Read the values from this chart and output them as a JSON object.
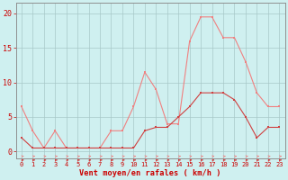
{
  "x": [
    0,
    1,
    2,
    3,
    4,
    5,
    6,
    7,
    8,
    9,
    10,
    11,
    12,
    13,
    14,
    15,
    16,
    17,
    18,
    19,
    20,
    21,
    22,
    23
  ],
  "y_rafales": [
    6.5,
    3.0,
    0.5,
    3.0,
    0.5,
    0.5,
    0.5,
    0.5,
    3.0,
    3.0,
    6.5,
    11.5,
    9.0,
    4.0,
    4.0,
    16.0,
    19.5,
    19.5,
    16.5,
    16.5,
    13.0,
    8.5,
    6.5,
    6.5
  ],
  "y_moyen": [
    2.0,
    0.5,
    0.5,
    0.5,
    0.5,
    0.5,
    0.5,
    0.5,
    0.5,
    0.5,
    0.5,
    3.0,
    3.5,
    3.5,
    5.0,
    6.5,
    8.5,
    8.5,
    8.5,
    7.5,
    5.0,
    2.0,
    3.5,
    3.5
  ],
  "color_rafales": "#f08080",
  "color_moyen": "#d04040",
  "bg_color": "#cff0f0",
  "grid_color": "#a8c8c8",
  "xlabel": "Vent moyen/en rafales ( km/h )",
  "yticks": [
    0,
    5,
    10,
    15,
    20
  ],
  "ylim": [
    -1.0,
    21.5
  ],
  "xlim": [
    -0.5,
    23.5
  ],
  "tick_color": "#cc0000",
  "label_color": "#cc0000",
  "axis_color": "#909090",
  "xtick_fontsize": 5.0,
  "ytick_fontsize": 6.0,
  "xlabel_fontsize": 6.2,
  "line_width": 0.8,
  "marker_size": 2.0
}
